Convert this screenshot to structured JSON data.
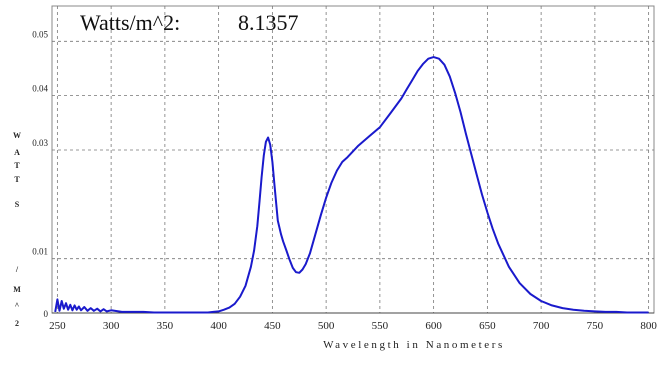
{
  "chart_data": {
    "type": "line",
    "header": {
      "label": "Watts/m^2:",
      "value": "8.1357"
    },
    "xlabel": "Wavelength in Nanometers",
    "ylabel_chars": [
      "W",
      "A",
      "T",
      "T",
      "S",
      "/",
      "M",
      "^",
      "2"
    ],
    "xlim": [
      245,
      805
    ],
    "ylim": [
      0,
      0.0565
    ],
    "x_ticks": [
      "250",
      "300",
      "350",
      "400",
      "450",
      "500",
      "550",
      "600",
      "650",
      "700",
      "750",
      "800"
    ],
    "y_ticks": [
      "0",
      "0.01",
      "0.03",
      "0.04",
      "0.05"
    ],
    "grid": true,
    "series": [
      {
        "color": "#1a1acc",
        "x": [
          248,
          250,
          252,
          254,
          256,
          258,
          260,
          262,
          264,
          266,
          268,
          270,
          272,
          275,
          278,
          281,
          284,
          287,
          290,
          293,
          296,
          300,
          310,
          320,
          330,
          340,
          350,
          360,
          370,
          380,
          390,
          395,
          400,
          405,
          410,
          415,
          420,
          425,
          430,
          433,
          436,
          438,
          440,
          442,
          444,
          446,
          448,
          450,
          452,
          455,
          458,
          460,
          463,
          466,
          469,
          472,
          475,
          478,
          481,
          485,
          490,
          495,
          500,
          505,
          510,
          515,
          520,
          530,
          540,
          550,
          560,
          570,
          575,
          580,
          585,
          590,
          595,
          600,
          605,
          610,
          615,
          620,
          625,
          630,
          635,
          640,
          645,
          650,
          655,
          660,
          670,
          680,
          690,
          700,
          710,
          720,
          730,
          740,
          750,
          760,
          770,
          780,
          790,
          800
        ],
        "y": [
          0.0002,
          0.0025,
          0.0004,
          0.0022,
          0.0008,
          0.0018,
          0.0006,
          0.0015,
          0.0005,
          0.0014,
          0.0006,
          0.0012,
          0.0005,
          0.0011,
          0.0004,
          0.0009,
          0.0004,
          0.0008,
          0.0003,
          0.0007,
          0.0003,
          0.0005,
          0.0002,
          0.0002,
          0.0002,
          0.0001,
          0.0001,
          0.0001,
          0.0001,
          0.0001,
          0.0001,
          0.0002,
          0.0003,
          0.0006,
          0.001,
          0.0017,
          0.003,
          0.005,
          0.0085,
          0.0115,
          0.016,
          0.0205,
          0.025,
          0.029,
          0.0315,
          0.0323,
          0.031,
          0.0278,
          0.0235,
          0.017,
          0.0145,
          0.0132,
          0.0115,
          0.0098,
          0.0083,
          0.0075,
          0.0074,
          0.008,
          0.009,
          0.011,
          0.0145,
          0.018,
          0.0212,
          0.024,
          0.0262,
          0.0278,
          0.0287,
          0.0308,
          0.0325,
          0.0342,
          0.0368,
          0.0395,
          0.0412,
          0.0428,
          0.0445,
          0.0458,
          0.0468,
          0.0471,
          0.0468,
          0.0457,
          0.0435,
          0.0405,
          0.037,
          0.033,
          0.0292,
          0.0255,
          0.0218,
          0.0185,
          0.0155,
          0.0128,
          0.0085,
          0.0055,
          0.0035,
          0.0022,
          0.0014,
          0.0009,
          0.0006,
          0.0004,
          0.0003,
          0.0002,
          0.0002,
          0.0001,
          0.0001,
          0.0001
        ]
      }
    ]
  }
}
